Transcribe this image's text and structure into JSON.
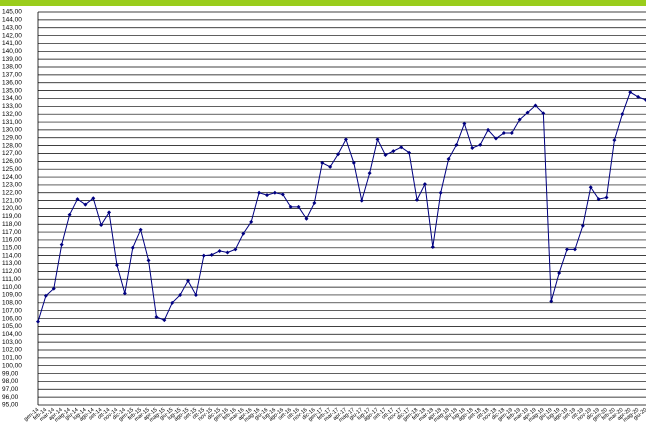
{
  "chart_data": {
    "type": "line",
    "grid": true,
    "categories": [
      "gen-14",
      "feb-14",
      "mar-14",
      "apr-14",
      "mag-14",
      "giu-14",
      "lug-14",
      "ago-14",
      "set-14",
      "ott-14",
      "nov-14",
      "dic-14",
      "gen-15",
      "feb-15",
      "mar-15",
      "apr-15",
      "mag-15",
      "giu-15",
      "lug-15",
      "ago-15",
      "set-15",
      "ott-15",
      "nov-15",
      "dic-15",
      "gen-16",
      "feb-16",
      "mar-16",
      "apr-16",
      "mag-16",
      "giu-16",
      "lug-16",
      "ago-16",
      "set-16",
      "ott-16",
      "nov-16",
      "dic-16",
      "gen-17",
      "feb-17",
      "mar-17",
      "apr-17",
      "mag-17",
      "giu-17",
      "lug-17",
      "ago-17",
      "set-17",
      "ott-17",
      "nov-17",
      "dic-17",
      "gen-18",
      "feb-18",
      "mar-18",
      "apr-18",
      "mag-18",
      "giu-18",
      "lug-18",
      "ago-18",
      "set-18",
      "ott-18",
      "nov-18",
      "dic-18",
      "gen-19",
      "feb-19",
      "mar-19",
      "apr-19",
      "mag-19",
      "giu-19",
      "lug-19",
      "ago-19",
      "set-19",
      "ott-19",
      "nov-19",
      "dic-19",
      "gen-20",
      "feb-20",
      "mar-20",
      "apr-20",
      "mag-20",
      "giu-20"
    ],
    "series": [
      {
        "color": "#000080",
        "values": [
          105.6,
          108.9,
          109.8,
          115.4,
          119.2,
          121.2,
          120.5,
          121.3,
          117.9,
          119.5,
          112.8,
          109.2,
          115,
          117.3,
          113.4,
          106.2,
          105.8,
          108,
          109,
          110.8,
          109,
          114,
          114.1,
          114.6,
          114.4,
          114.8,
          116.8,
          118.3,
          122,
          121.7,
          122,
          121.8,
          120.2,
          120.2,
          118.7,
          120.7,
          125.8,
          125.3,
          126.9,
          128.8,
          125.8,
          121,
          124.5,
          128.8,
          126.8,
          127.3,
          127.8,
          127.1,
          121.1,
          123.1,
          115.1,
          122,
          126.3,
          128.1,
          130.8,
          127.7,
          128.1,
          130,
          128.9,
          129.6,
          129.6,
          131.3,
          132.2,
          133.1,
          132.1,
          108.2,
          111.8,
          114.8,
          114.8,
          117.8,
          122.7,
          121.2,
          121.4,
          128.7,
          132,
          134.8,
          134.2,
          133.8
        ]
      }
    ],
    "ylim": [
      95,
      145
    ],
    "yticks": [
      {
        "value": 95,
        "label": "95,00"
      },
      {
        "value": 96,
        "label": "96,00"
      },
      {
        "value": 97,
        "label": "97,00"
      },
      {
        "value": 98,
        "label": "98,00"
      },
      {
        "value": 99,
        "label": "99,00"
      },
      {
        "value": 100,
        "label": "100,00"
      },
      {
        "value": 101,
        "label": "101,00"
      },
      {
        "value": 102,
        "label": "102,00"
      },
      {
        "value": 103,
        "label": "103,00"
      },
      {
        "value": 104,
        "label": "104,00"
      },
      {
        "value": 105,
        "label": "105,00"
      },
      {
        "value": 106,
        "label": "106,00"
      },
      {
        "value": 107,
        "label": "107,00"
      },
      {
        "value": 108,
        "label": "108,00"
      },
      {
        "value": 109,
        "label": "109,00"
      },
      {
        "value": 110,
        "label": "110,00"
      },
      {
        "value": 111,
        "label": "111,00"
      },
      {
        "value": 112,
        "label": "112,00"
      },
      {
        "value": 113,
        "label": "113,00"
      },
      {
        "value": 114,
        "label": "114,00"
      },
      {
        "value": 115,
        "label": "115,00"
      },
      {
        "value": 116,
        "label": "116,00"
      },
      {
        "value": 117,
        "label": "117,00"
      },
      {
        "value": 118,
        "label": "118,00"
      },
      {
        "value": 119,
        "label": "119,00"
      },
      {
        "value": 120,
        "label": "120,00"
      },
      {
        "value": 121,
        "label": "121,00"
      },
      {
        "value": 122,
        "label": "122,00"
      },
      {
        "value": 123,
        "label": "123,00"
      },
      {
        "value": 124,
        "label": "124,00"
      },
      {
        "value": 125,
        "label": "125,00"
      },
      {
        "value": 126,
        "label": "126,00"
      },
      {
        "value": 127,
        "label": "127,00"
      },
      {
        "value": 128,
        "label": "128,00"
      },
      {
        "value": 129,
        "label": "129,00"
      },
      {
        "value": 130,
        "label": "130,00"
      },
      {
        "value": 131,
        "label": "131,00"
      },
      {
        "value": 132,
        "label": "132,00"
      },
      {
        "value": 133,
        "label": "133,00"
      },
      {
        "value": 134,
        "label": "134,00"
      },
      {
        "value": 135,
        "label": "135,00"
      },
      {
        "value": 136,
        "label": "136,00"
      },
      {
        "value": 137,
        "label": "137,00"
      },
      {
        "value": 138,
        "label": "138,00"
      },
      {
        "value": 139,
        "label": "139,00"
      },
      {
        "value": 140,
        "label": "140,00"
      },
      {
        "value": 141,
        "label": "141,00"
      },
      {
        "value": 142,
        "label": "142,00"
      },
      {
        "value": 143,
        "label": "143,00"
      },
      {
        "value": 144,
        "label": "144,00"
      },
      {
        "value": 145,
        "label": "145,00"
      }
    ]
  }
}
